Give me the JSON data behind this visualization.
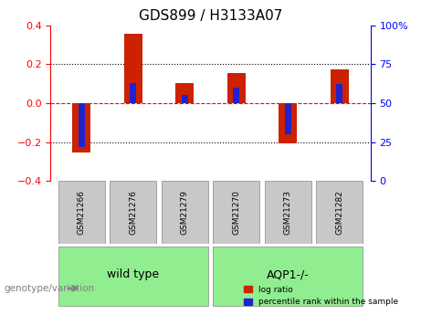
{
  "title": "GDS899 / H3133A07",
  "samples": [
    "GSM21266",
    "GSM21276",
    "GSM21279",
    "GSM21270",
    "GSM21273",
    "GSM21282"
  ],
  "log_ratios": [
    -0.255,
    0.355,
    0.105,
    0.155,
    -0.205,
    0.175
  ],
  "percentile_ranks": [
    22,
    63,
    55,
    60,
    30,
    62
  ],
  "groups": [
    {
      "label": "wild type",
      "samples": [
        0,
        1,
        2
      ],
      "color": "#90EE90"
    },
    {
      "label": "AQP1-/-",
      "samples": [
        3,
        4,
        5
      ],
      "color": "#90EE90"
    }
  ],
  "group_boundary": 2.5,
  "ylim_left": [
    -0.4,
    0.4
  ],
  "ylim_right": [
    0,
    100
  ],
  "yticks_left": [
    -0.4,
    -0.2,
    0.0,
    0.2,
    0.4
  ],
  "yticks_right": [
    0,
    25,
    50,
    75,
    100
  ],
  "ytick_labels_right": [
    "0",
    "25",
    "50",
    "75",
    "100%"
  ],
  "hlines": [
    -0.2,
    0.0,
    0.2
  ],
  "hline_styles": [
    "dotted",
    "dashed",
    "dotted"
  ],
  "hline_colors": [
    "black",
    "red",
    "black"
  ],
  "bar_color_red": "#CC2200",
  "bar_color_blue": "#2222CC",
  "bar_width": 0.35,
  "blue_bar_width": 0.12,
  "group_box_color": "#C8C8C8",
  "legend_red": "log ratio",
  "legend_blue": "percentile rank within the sample",
  "genotype_label": "genotype/variation"
}
